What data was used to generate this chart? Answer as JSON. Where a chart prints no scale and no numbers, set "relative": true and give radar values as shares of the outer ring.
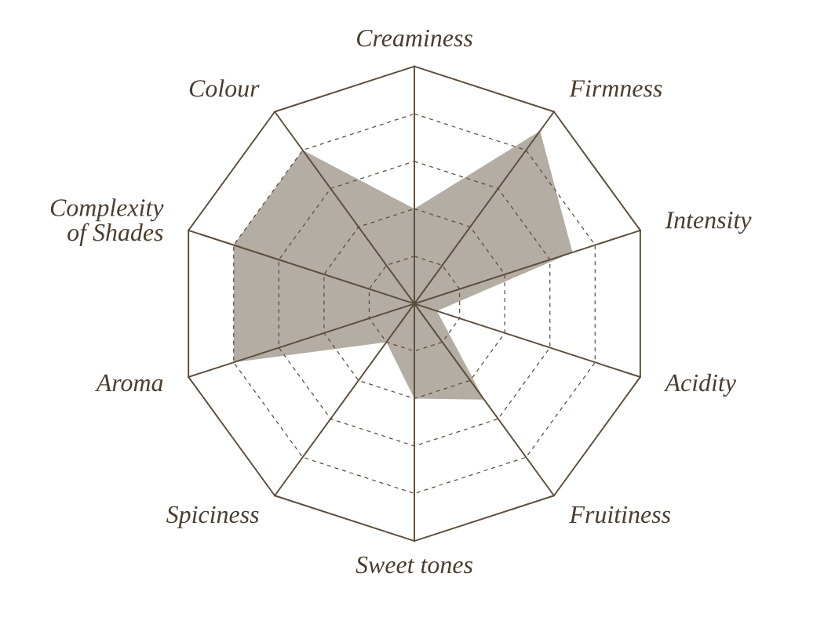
{
  "chart_data": {
    "type": "radar",
    "relative": true,
    "grid": true,
    "legend": false,
    "categories": [
      "Creaminess",
      "Firmness",
      "Intensity",
      "Acidity",
      "Fruitiness",
      "Sweet tones",
      "Spiciness",
      "Aroma",
      "Complexity\nof Shades",
      "Colour"
    ],
    "series": [
      {
        "color": "#b4ada3",
        "values": [
          0.4,
          0.9,
          0.7,
          0.1,
          0.5,
          0.4,
          0.2,
          0.8,
          0.8,
          0.8
        ]
      }
    ]
  }
}
